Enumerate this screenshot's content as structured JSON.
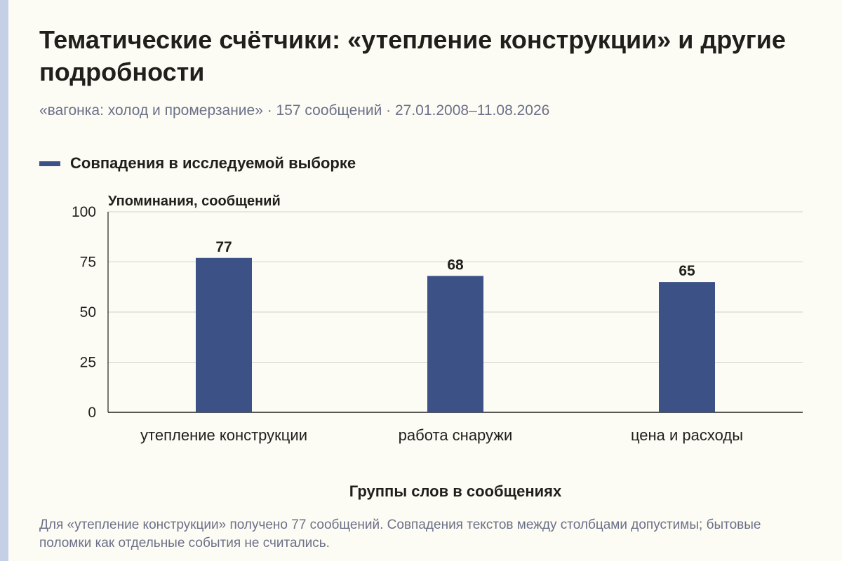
{
  "chart_data": {
    "type": "bar",
    "title": "Тематические счётчики: «утепление конструкции» и другие подробности",
    "subtitle": "«вагонка: холод и промерзание» · 157 сообщений · 27.01.2008–11.08.2026",
    "legend": {
      "placement": "top-left",
      "entries": [
        "Совпадения в исследуемой выборке"
      ]
    },
    "series": [
      {
        "name": "Совпадения в исследуемой выборке",
        "values": [
          77,
          68,
          65
        ],
        "color": "#3c5287"
      }
    ],
    "categories": [
      "утепление конструкции",
      "работа снаружи",
      "цена и расходы"
    ],
    "xlabel": "Группы слов в сообщениях",
    "ylabel": "Упоминания, сообщений",
    "ylim": [
      0,
      100
    ],
    "yticks": [
      0,
      25,
      50,
      75,
      100
    ],
    "grid": true,
    "data_labels": true
  },
  "footnote": "Для «утепление конструкции» получено 77 сообщений. Совпадения текстов между столбцами допустимы; бытовые поломки как отдельные события не считались."
}
